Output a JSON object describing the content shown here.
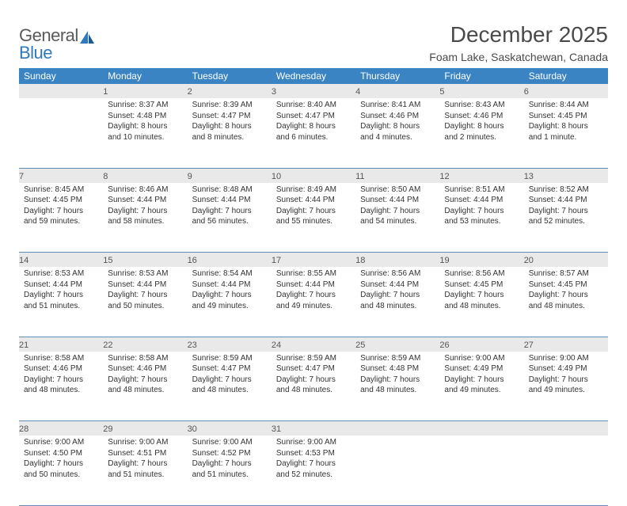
{
  "logo": {
    "top": "General",
    "bottom": "Blue"
  },
  "month_title": "December 2025",
  "location": "Foam Lake, Saskatchewan, Canada",
  "colors": {
    "header_bg": "#3b84c4",
    "header_text": "#ffffff",
    "daynum_bg": "#e9e9e9",
    "row_border": "#5f8db8",
    "logo_blue": "#2f78bd",
    "logo_gray": "#5a5a5a"
  },
  "day_headers": [
    "Sunday",
    "Monday",
    "Tuesday",
    "Wednesday",
    "Thursday",
    "Friday",
    "Saturday"
  ],
  "weeks": [
    [
      null,
      {
        "n": "1",
        "l": [
          "Sunrise: 8:37 AM",
          "Sunset: 4:48 PM",
          "Daylight: 8 hours",
          "and 10 minutes."
        ]
      },
      {
        "n": "2",
        "l": [
          "Sunrise: 8:39 AM",
          "Sunset: 4:47 PM",
          "Daylight: 8 hours",
          "and 8 minutes."
        ]
      },
      {
        "n": "3",
        "l": [
          "Sunrise: 8:40 AM",
          "Sunset: 4:47 PM",
          "Daylight: 8 hours",
          "and 6 minutes."
        ]
      },
      {
        "n": "4",
        "l": [
          "Sunrise: 8:41 AM",
          "Sunset: 4:46 PM",
          "Daylight: 8 hours",
          "and 4 minutes."
        ]
      },
      {
        "n": "5",
        "l": [
          "Sunrise: 8:43 AM",
          "Sunset: 4:46 PM",
          "Daylight: 8 hours",
          "and 2 minutes."
        ]
      },
      {
        "n": "6",
        "l": [
          "Sunrise: 8:44 AM",
          "Sunset: 4:45 PM",
          "Daylight: 8 hours",
          "and 1 minute."
        ]
      }
    ],
    [
      {
        "n": "7",
        "l": [
          "Sunrise: 8:45 AM",
          "Sunset: 4:45 PM",
          "Daylight: 7 hours",
          "and 59 minutes."
        ]
      },
      {
        "n": "8",
        "l": [
          "Sunrise: 8:46 AM",
          "Sunset: 4:44 PM",
          "Daylight: 7 hours",
          "and 58 minutes."
        ]
      },
      {
        "n": "9",
        "l": [
          "Sunrise: 8:48 AM",
          "Sunset: 4:44 PM",
          "Daylight: 7 hours",
          "and 56 minutes."
        ]
      },
      {
        "n": "10",
        "l": [
          "Sunrise: 8:49 AM",
          "Sunset: 4:44 PM",
          "Daylight: 7 hours",
          "and 55 minutes."
        ]
      },
      {
        "n": "11",
        "l": [
          "Sunrise: 8:50 AM",
          "Sunset: 4:44 PM",
          "Daylight: 7 hours",
          "and 54 minutes."
        ]
      },
      {
        "n": "12",
        "l": [
          "Sunrise: 8:51 AM",
          "Sunset: 4:44 PM",
          "Daylight: 7 hours",
          "and 53 minutes."
        ]
      },
      {
        "n": "13",
        "l": [
          "Sunrise: 8:52 AM",
          "Sunset: 4:44 PM",
          "Daylight: 7 hours",
          "and 52 minutes."
        ]
      }
    ],
    [
      {
        "n": "14",
        "l": [
          "Sunrise: 8:53 AM",
          "Sunset: 4:44 PM",
          "Daylight: 7 hours",
          "and 51 minutes."
        ]
      },
      {
        "n": "15",
        "l": [
          "Sunrise: 8:53 AM",
          "Sunset: 4:44 PM",
          "Daylight: 7 hours",
          "and 50 minutes."
        ]
      },
      {
        "n": "16",
        "l": [
          "Sunrise: 8:54 AM",
          "Sunset: 4:44 PM",
          "Daylight: 7 hours",
          "and 49 minutes."
        ]
      },
      {
        "n": "17",
        "l": [
          "Sunrise: 8:55 AM",
          "Sunset: 4:44 PM",
          "Daylight: 7 hours",
          "and 49 minutes."
        ]
      },
      {
        "n": "18",
        "l": [
          "Sunrise: 8:56 AM",
          "Sunset: 4:44 PM",
          "Daylight: 7 hours",
          "and 48 minutes."
        ]
      },
      {
        "n": "19",
        "l": [
          "Sunrise: 8:56 AM",
          "Sunset: 4:45 PM",
          "Daylight: 7 hours",
          "and 48 minutes."
        ]
      },
      {
        "n": "20",
        "l": [
          "Sunrise: 8:57 AM",
          "Sunset: 4:45 PM",
          "Daylight: 7 hours",
          "and 48 minutes."
        ]
      }
    ],
    [
      {
        "n": "21",
        "l": [
          "Sunrise: 8:58 AM",
          "Sunset: 4:46 PM",
          "Daylight: 7 hours",
          "and 48 minutes."
        ]
      },
      {
        "n": "22",
        "l": [
          "Sunrise: 8:58 AM",
          "Sunset: 4:46 PM",
          "Daylight: 7 hours",
          "and 48 minutes."
        ]
      },
      {
        "n": "23",
        "l": [
          "Sunrise: 8:59 AM",
          "Sunset: 4:47 PM",
          "Daylight: 7 hours",
          "and 48 minutes."
        ]
      },
      {
        "n": "24",
        "l": [
          "Sunrise: 8:59 AM",
          "Sunset: 4:47 PM",
          "Daylight: 7 hours",
          "and 48 minutes."
        ]
      },
      {
        "n": "25",
        "l": [
          "Sunrise: 8:59 AM",
          "Sunset: 4:48 PM",
          "Daylight: 7 hours",
          "and 48 minutes."
        ]
      },
      {
        "n": "26",
        "l": [
          "Sunrise: 9:00 AM",
          "Sunset: 4:49 PM",
          "Daylight: 7 hours",
          "and 49 minutes."
        ]
      },
      {
        "n": "27",
        "l": [
          "Sunrise: 9:00 AM",
          "Sunset: 4:49 PM",
          "Daylight: 7 hours",
          "and 49 minutes."
        ]
      }
    ],
    [
      {
        "n": "28",
        "l": [
          "Sunrise: 9:00 AM",
          "Sunset: 4:50 PM",
          "Daylight: 7 hours",
          "and 50 minutes."
        ]
      },
      {
        "n": "29",
        "l": [
          "Sunrise: 9:00 AM",
          "Sunset: 4:51 PM",
          "Daylight: 7 hours",
          "and 51 minutes."
        ]
      },
      {
        "n": "30",
        "l": [
          "Sunrise: 9:00 AM",
          "Sunset: 4:52 PM",
          "Daylight: 7 hours",
          "and 51 minutes."
        ]
      },
      {
        "n": "31",
        "l": [
          "Sunrise: 9:00 AM",
          "Sunset: 4:53 PM",
          "Daylight: 7 hours",
          "and 52 minutes."
        ]
      },
      null,
      null,
      null
    ]
  ]
}
